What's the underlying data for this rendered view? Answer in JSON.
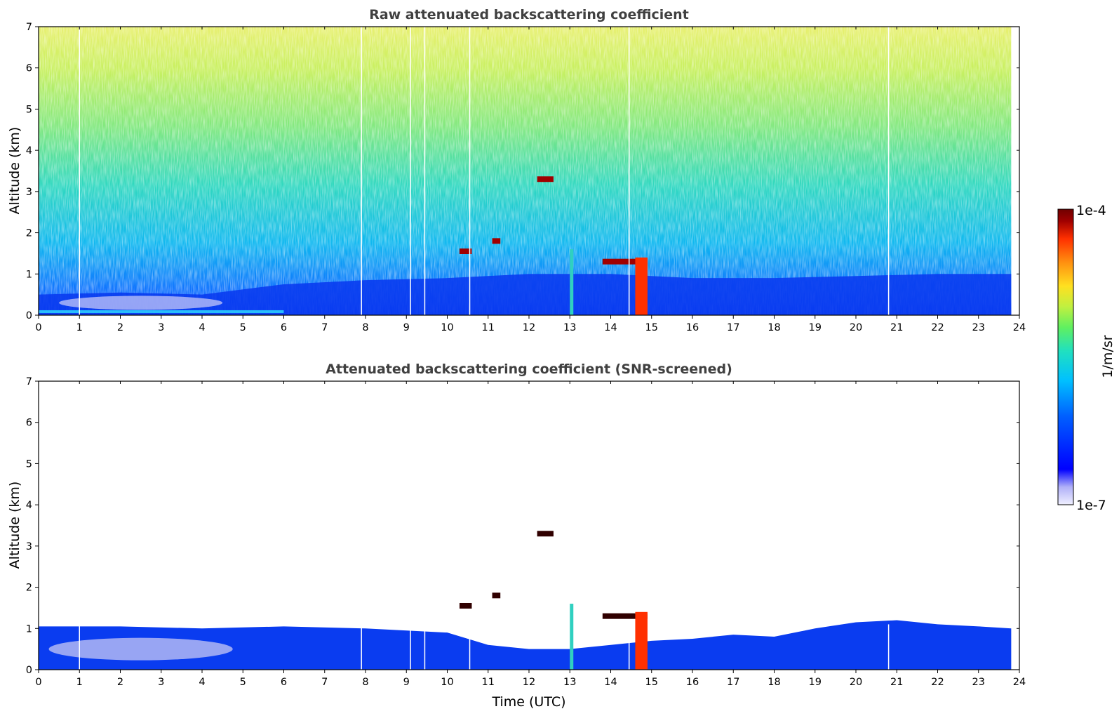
{
  "chart_data": [
    {
      "type": "heatmap",
      "title": "Raw attenuated backscattering coefficient",
      "xlabel": "",
      "ylabel": "Altitude (km)",
      "xlim": [
        0,
        24
      ],
      "ylim": [
        0,
        7
      ],
      "xticks": [
        "0",
        "1",
        "2",
        "3",
        "4",
        "5",
        "6",
        "7",
        "8",
        "9",
        "10",
        "11",
        "12",
        "13",
        "14",
        "15",
        "16",
        "17",
        "18",
        "19",
        "20",
        "21",
        "22",
        "23",
        "24"
      ],
      "yticks": [
        "0",
        "1",
        "2",
        "3",
        "4",
        "5",
        "6",
        "7"
      ],
      "data_end_time": 23.8,
      "boundary_layer_top_km": [
        [
          0,
          0.5
        ],
        [
          2,
          0.55
        ],
        [
          4,
          0.5
        ],
        [
          6,
          0.75
        ],
        [
          8,
          0.85
        ],
        [
          10,
          0.9
        ],
        [
          12,
          1.0
        ],
        [
          14,
          1.0
        ],
        [
          16,
          0.9
        ],
        [
          18,
          0.9
        ],
        [
          20,
          0.95
        ],
        [
          22,
          1.0
        ],
        [
          23.8,
          1.0
        ]
      ],
      "cloud_features": [
        {
          "time_start": 10.3,
          "time_end": 10.6,
          "alt_km": 1.55
        },
        {
          "time_start": 11.1,
          "time_end": 11.3,
          "alt_km": 1.8
        },
        {
          "time_start": 12.2,
          "time_end": 12.6,
          "alt_km": 3.3
        },
        {
          "time_start": 13.8,
          "time_end": 14.9,
          "alt_km": 1.3
        },
        {
          "time_start": 14.6,
          "time_end": 14.9,
          "alt_km": 0.6
        }
      ],
      "data_gaps_utc": [
        1.0,
        7.9,
        9.1,
        9.45,
        10.55,
        14.45,
        20.8
      ]
    },
    {
      "type": "heatmap",
      "title": "Attenuated backscattering coefficient (SNR-screened)",
      "xlabel": "Time (UTC)",
      "ylabel": "Altitude (km)",
      "xlim": [
        0,
        24
      ],
      "ylim": [
        0,
        7
      ],
      "xticks": [
        "0",
        "1",
        "2",
        "3",
        "4",
        "5",
        "6",
        "7",
        "8",
        "9",
        "10",
        "11",
        "12",
        "13",
        "14",
        "15",
        "16",
        "17",
        "18",
        "19",
        "20",
        "21",
        "22",
        "23",
        "24"
      ],
      "yticks": [
        "0",
        "1",
        "2",
        "3",
        "4",
        "5",
        "6",
        "7"
      ],
      "data_end_time": 23.8,
      "screened_top_km": [
        [
          0,
          1.05
        ],
        [
          2,
          1.05
        ],
        [
          4,
          1.0
        ],
        [
          6,
          1.05
        ],
        [
          8,
          1.0
        ],
        [
          10,
          0.9
        ],
        [
          11,
          0.6
        ],
        [
          12,
          0.5
        ],
        [
          13,
          0.5
        ],
        [
          14,
          0.6
        ],
        [
          15,
          0.7
        ],
        [
          16,
          0.75
        ],
        [
          17,
          0.85
        ],
        [
          18,
          0.8
        ],
        [
          19,
          1.0
        ],
        [
          20,
          1.15
        ],
        [
          21,
          1.2
        ],
        [
          22,
          1.1
        ],
        [
          23,
          1.05
        ],
        [
          23.8,
          1.0
        ]
      ]
    }
  ],
  "colorbar": {
    "label": "1/m/sr",
    "min_label": "1e-7",
    "max_label": "1e-4",
    "scale": "log",
    "colormap": [
      "#f0f0ff",
      "#b0b0f8",
      "#0000ff",
      "#0060ff",
      "#00c0ff",
      "#20e0c0",
      "#60f060",
      "#c0f040",
      "#ffe020",
      "#ff9010",
      "#ff3000",
      "#a00000",
      "#700000"
    ]
  }
}
